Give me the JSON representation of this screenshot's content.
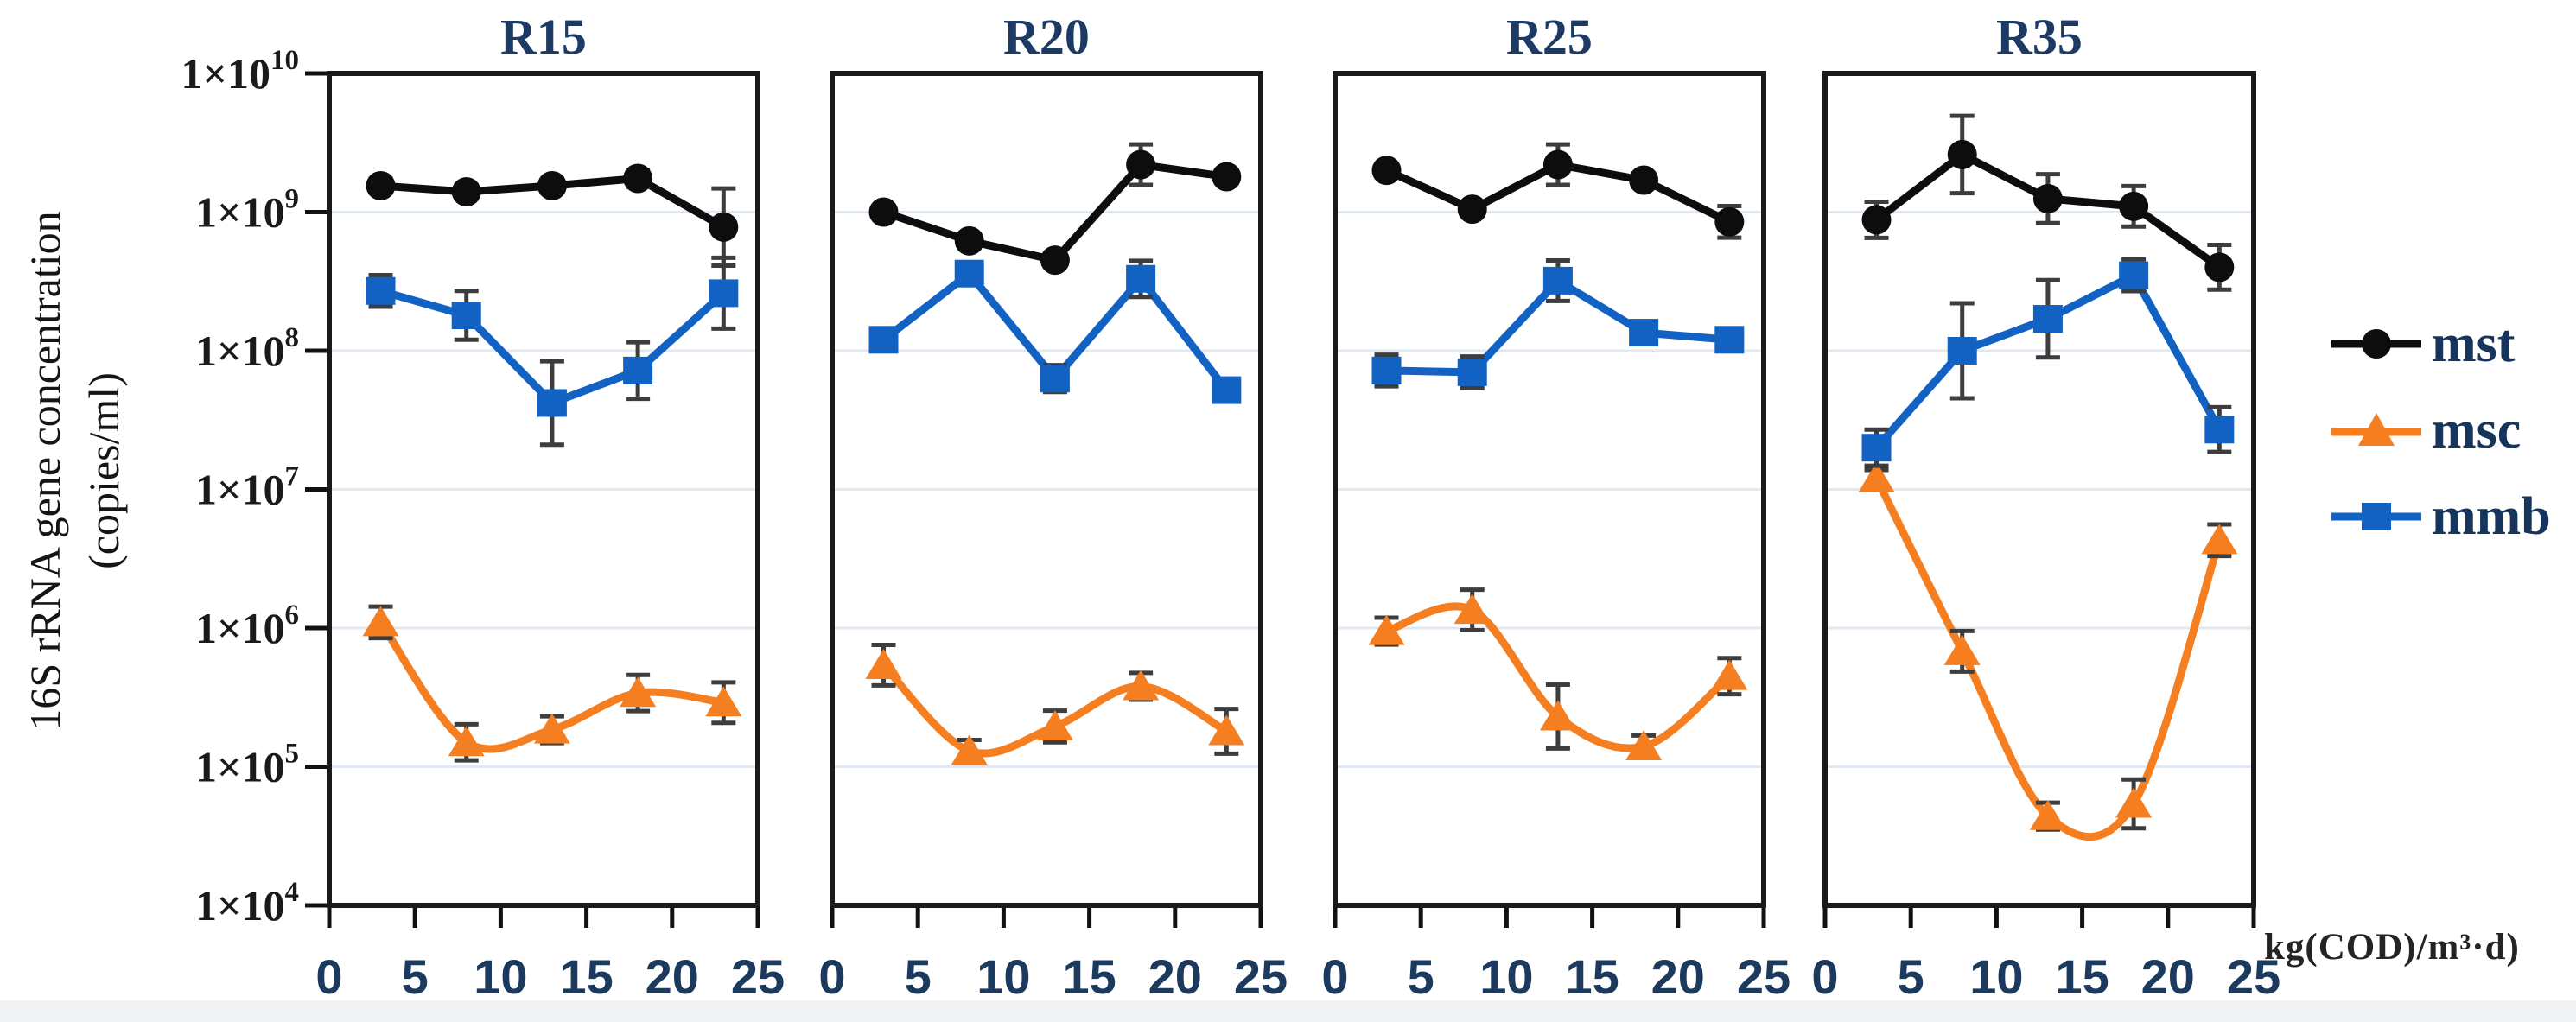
{
  "figure": {
    "y_axis_title_line1": "16S rRNA gene concentration",
    "y_axis_title_line2": "(copies/ml)",
    "x_axis_unit_label": "kg(COD)/m³·d)"
  },
  "colors": {
    "panel_title_text": "#1c3a64",
    "x_tick_text": "#1b3a5e",
    "y_tick_text": "#1a1a1a",
    "panel_border": "#1a1a1a",
    "gridline": "#e2e8f0",
    "error_bar": "#3d3d3d",
    "series_mst": "#0d0d0d",
    "series_msc": "#f57e20",
    "series_mmb": "#1262c4"
  },
  "chart_data": {
    "type": "line",
    "y_scale": "log",
    "ylim": [
      10000,
      10000000000
    ],
    "grid": "horizontal-decades",
    "legend_position": "right-outside",
    "x": [
      3,
      8,
      13,
      18,
      23
    ],
    "x_ticks": [
      0,
      5,
      10,
      15,
      20,
      25
    ],
    "xlim": [
      0,
      25
    ],
    "y_tick_base": "1×10",
    "y_tick_exponents": [
      10,
      9,
      8,
      7,
      6,
      5,
      4
    ],
    "series_meta": [
      {
        "id": "mst",
        "label": "mst",
        "color": "#0d0d0d",
        "marker": "circle"
      },
      {
        "id": "msc",
        "label": "msc",
        "color": "#f57e20",
        "marker": "triangle"
      },
      {
        "id": "mmb",
        "label": "mmb",
        "color": "#1262c4",
        "marker": "square"
      }
    ],
    "panels": [
      {
        "title": "R15",
        "series": [
          {
            "id": "mst",
            "values": [
              1550000000.0,
              1400000000.0,
              1550000000.0,
              1750000000.0,
              780000000.0
            ],
            "err": [
              1.12,
              1.12,
              1.12,
              1.15,
              1.9
            ]
          },
          {
            "id": "msc",
            "values": [
              1100000.0,
              150000.0,
              185000.0,
              340000.0,
              290000.0
            ],
            "err": [
              1.3,
              1.35,
              1.25,
              1.35,
              1.4
            ]
          },
          {
            "id": "mmb",
            "values": [
              270000000.0,
              180000000.0,
              42000000.0,
              72000000.0,
              260000000.0
            ],
            "err": [
              1.3,
              1.5,
              2.0,
              1.6,
              1.8
            ]
          }
        ]
      },
      {
        "title": "R20",
        "series": [
          {
            "id": "mst",
            "values": [
              1000000000.0,
              620000000.0,
              450000000.0,
              2200000000.0,
              1800000000.0
            ],
            "err": [
              1.1,
              1.12,
              1.1,
              1.4,
              1.1
            ]
          },
          {
            "id": "msc",
            "values": [
              540000.0,
              130000.0,
              195000.0,
              380000.0,
              180000.0
            ],
            "err": [
              1.4,
              1.2,
              1.3,
              1.25,
              1.45
            ]
          },
          {
            "id": "mmb",
            "values": [
              120000000.0,
              360000000.0,
              63000000.0,
              330000000.0,
              52000000.0
            ],
            "err": [
              1.15,
              1.2,
              1.25,
              1.35,
              1.12
            ]
          }
        ]
      },
      {
        "title": "R25",
        "series": [
          {
            "id": "mst",
            "values": [
              2000000000.0,
              1050000000.0,
              2200000000.0,
              1700000000.0,
              850000000.0
            ],
            "err": [
              1.12,
              1.1,
              1.4,
              1.12,
              1.3
            ]
          },
          {
            "id": "msc",
            "values": [
              950000.0,
              1350000.0,
              230000.0,
              140000.0,
              450000.0
            ],
            "err": [
              1.25,
              1.4,
              1.7,
              1.2,
              1.35
            ]
          },
          {
            "id": "mmb",
            "values": [
              72000000.0,
              70000000.0,
              320000000.0,
              135000000.0,
              120000000.0
            ],
            "err": [
              1.3,
              1.3,
              1.4,
              1.15,
              1.15
            ]
          }
        ]
      },
      {
        "title": "R35",
        "series": [
          {
            "id": "mst",
            "values": [
              880000000.0,
              2600000000.0,
              1250000000.0,
              1100000000.0,
              400000000.0
            ],
            "err": [
              1.35,
              1.9,
              1.5,
              1.4,
              1.45
            ]
          },
          {
            "id": "msc",
            "values": [
              12000000.0,
              680000.0,
              44000.0,
              54000.0,
              4300000.0
            ],
            "err": [
              1.15,
              1.4,
              1.25,
              1.5,
              1.3
            ]
          },
          {
            "id": "mmb",
            "values": [
              20000000.0,
              100000000.0,
              170000000.0,
              350000000.0,
              27000000.0
            ],
            "err": [
              1.35,
              2.2,
              1.9,
              1.3,
              1.45
            ]
          }
        ]
      }
    ]
  }
}
